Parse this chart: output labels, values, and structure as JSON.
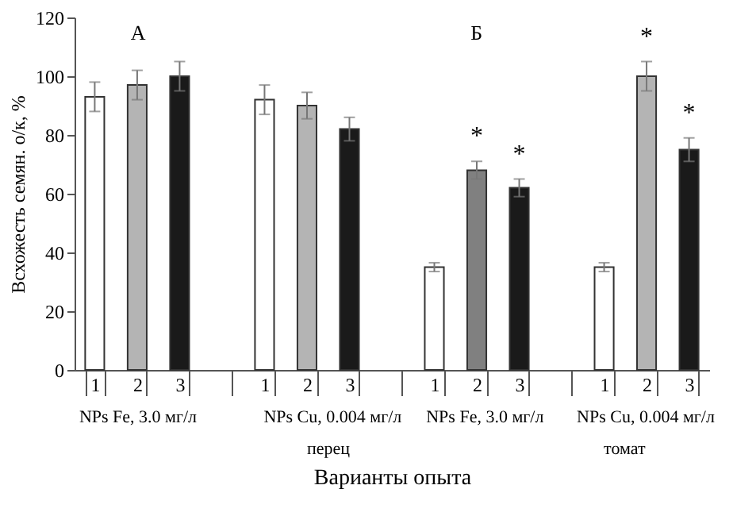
{
  "chart_data": {
    "type": "bar",
    "xlabel": "Варианты опыта",
    "ylabel": "Всхожесть семян. о/к, %",
    "categories": [
      "1",
      "2",
      "3",
      "1",
      "2",
      "3",
      "1",
      "2",
      "3",
      "1",
      "2",
      "3"
    ],
    "values": [
      93,
      97,
      100,
      92,
      90,
      82,
      35,
      68,
      62,
      35,
      100,
      75
    ],
    "errors": [
      5,
      5,
      5,
      5,
      4.5,
      4,
      1.5,
      3,
      3,
      1.5,
      5,
      4
    ],
    "colors": [
      "#ffffff",
      "#b4b4b4",
      "#1a1a1a",
      "#ffffff",
      "#b4b4b4",
      "#1a1a1a",
      "#ffffff",
      "#808080",
      "#1a1a1a",
      "#ffffff",
      "#b4b4b4",
      "#1a1a1a"
    ],
    "ylim": [
      0,
      120
    ],
    "yticks": [
      0,
      20,
      40,
      60,
      80,
      100,
      120
    ],
    "grid": false,
    "annotations": [
      "А",
      "Б",
      "*",
      "*",
      "*",
      "*",
      "NPs Fe, 3.0 мг/л",
      "NPs Cu, 0.004 мг/л",
      "NPs Fe, 3.0 мг/л",
      "NPs Cu, 0.004 мг/л",
      "перец",
      "томат"
    ]
  }
}
